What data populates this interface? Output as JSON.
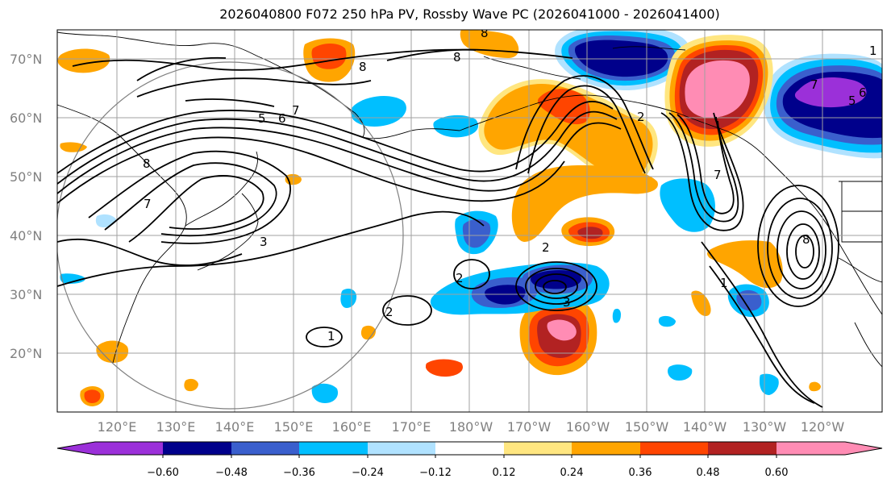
{
  "title": "2026040800 F072 250 hPa PV, Rossby Wave PC (2026041000 - 2026041400)",
  "lat_labels": [
    "70°N",
    "60°N",
    "50°N",
    "40°N",
    "30°N",
    "20°N"
  ],
  "lon_labels": [
    "120°E",
    "130°E",
    "140°E",
    "150°E",
    "160°E",
    "170°E",
    "180°W",
    "170°W",
    "160°W",
    "150°W",
    "140°W",
    "130°W",
    "120°W"
  ],
  "colorbar": {
    "ticks": [
      "−0.60",
      "−0.48",
      "−0.36",
      "−0.24",
      "−0.12",
      "0.12",
      "0.24",
      "0.36",
      "0.48",
      "0.60"
    ],
    "colors": [
      "#9b30d9",
      "#00008b",
      "#3a5fcd",
      "#00bfff",
      "#b0e2ff",
      "#ffffff",
      "#ffe680",
      "#ffa500",
      "#ff4500",
      "#b22222",
      "#ff8cb4",
      "#ff8cb4"
    ]
  },
  "contour_labels": [
    "8",
    "8",
    "8",
    "7",
    "5",
    "6",
    "7",
    "8",
    "7",
    "3",
    "2",
    "2",
    "2",
    "1",
    "3",
    "2",
    "1",
    "5",
    "6",
    "8",
    "7",
    "1"
  ],
  "colors": {
    "grid": "#a0a0a0",
    "coast": "#000000",
    "contour": "#000000"
  }
}
